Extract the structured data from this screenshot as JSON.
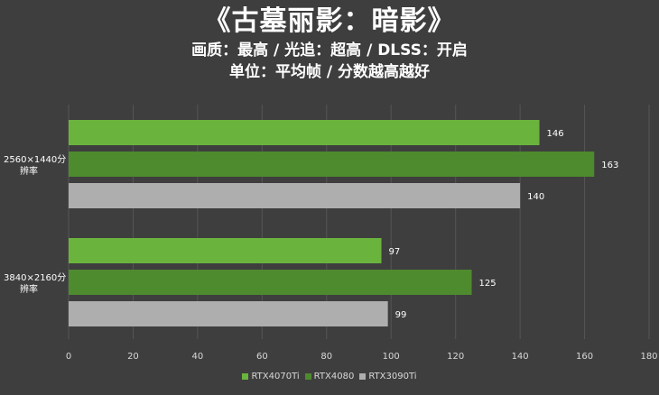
{
  "header": {
    "title": "《古墓丽影：暗影》",
    "subtitle1": "画质：最高 / 光追：超高 / DLSS：开启",
    "subtitle2": "单位：平均帧 / 分数越高越好"
  },
  "chart_data": {
    "type": "bar",
    "orientation": "horizontal",
    "categories": [
      "2560×1440分辨率",
      "3840×2160分辨率"
    ],
    "series": [
      {
        "name": "RTX4070Ti",
        "color": "#6ab43e",
        "values": [
          146,
          97
        ]
      },
      {
        "name": "RTX4080",
        "color": "#4e8a2e",
        "values": [
          163,
          125
        ]
      },
      {
        "name": "RTX3090Ti",
        "color": "#aeaeae",
        "values": [
          140,
          99
        ]
      }
    ],
    "xlim": [
      0,
      180
    ],
    "xticks": [
      0,
      20,
      40,
      60,
      80,
      100,
      120,
      140,
      160,
      180
    ],
    "grid": true,
    "legend_position": "bottom"
  }
}
